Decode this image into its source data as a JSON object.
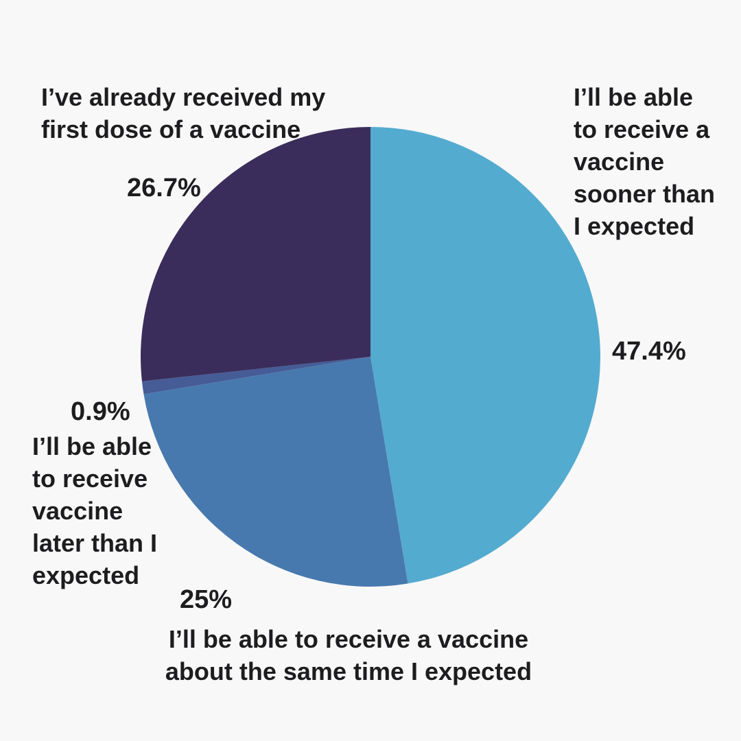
{
  "background_color": "#F8F8F8",
  "text_color": "#1D1D1F",
  "chart_data": {
    "type": "pie",
    "direction": "clockwise",
    "start_angle_deg": 0,
    "legend": "none",
    "slices": [
      {
        "label": "I’ll be able to receive a vaccine sooner than I expected",
        "callout": "I’ll be able\nto receive a\nvaccine\nsooner than\nI expected",
        "value": 47.4,
        "display": "47.4%",
        "color": "#54ABD0"
      },
      {
        "label": "I’ll be able to receive a vaccine about the same time I expected",
        "callout": "I’ll be able to receive a vaccine\nabout the same time I expected",
        "value": 25,
        "display": "25%",
        "color": "#4879AE"
      },
      {
        "label": "I’ll be able to receive vaccine later than I expected",
        "callout": "I’ll be able\nto receive\nvaccine\nlater than I\nexpected",
        "value": 0.9,
        "display": "0.9%",
        "color": "#455C97"
      },
      {
        "label": "I’ve already received my first dose of a vaccine",
        "callout": "I’ve already received my\nfirst dose of a vaccine",
        "value": 26.7,
        "display": "26.7%",
        "color": "#3B2D5B"
      }
    ]
  }
}
